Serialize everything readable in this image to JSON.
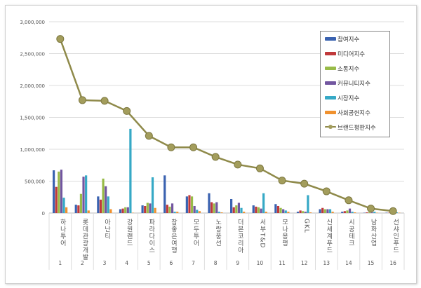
{
  "chart_data": {
    "type": "bar",
    "categories": [
      "하나투어",
      "롯데관광개발",
      "아난티",
      "강원랜드",
      "파라다이스",
      "참좋은여행",
      "모두투어",
      "노랑풍선",
      "더본코리아",
      "서부T&D",
      "모나용평",
      "GKL",
      "신세계푸드",
      "시공테크",
      "남화산업",
      "선샤인푸드"
    ],
    "category_numbers": [
      "1",
      "2",
      "3",
      "4",
      "5",
      "6",
      "7",
      "8",
      "9",
      "10",
      "11",
      "12",
      "13",
      "14",
      "15",
      "16"
    ],
    "ylim": [
      0,
      3000000
    ],
    "yticks": [
      "0",
      "500,000",
      "1,000,000",
      "1,500,000",
      "2,000,000",
      "2,500,000",
      "3,000,000"
    ],
    "grid": true,
    "legend_position": "top-right",
    "series": [
      {
        "name": "참여지수",
        "type": "bar",
        "color": "#3a62b0",
        "values": [
          670000,
          130000,
          260000,
          60000,
          120000,
          590000,
          260000,
          310000,
          220000,
          120000,
          140000,
          20000,
          60000,
          20000,
          5000,
          5000
        ]
      },
      {
        "name": "미디어지수",
        "type": "bar",
        "color": "#c0393b",
        "values": [
          410000,
          120000,
          210000,
          70000,
          110000,
          130000,
          280000,
          170000,
          90000,
          100000,
          110000,
          40000,
          80000,
          30000,
          10000,
          5000
        ]
      },
      {
        "name": "소통지수",
        "type": "bar",
        "color": "#98bb48",
        "values": [
          650000,
          300000,
          540000,
          90000,
          160000,
          100000,
          260000,
          150000,
          120000,
          90000,
          80000,
          30000,
          60000,
          40000,
          10000,
          5000
        ]
      },
      {
        "name": "커뮤니티지수",
        "type": "bar",
        "color": "#7256a0",
        "values": [
          680000,
          570000,
          420000,
          90000,
          150000,
          150000,
          110000,
          170000,
          160000,
          70000,
          60000,
          20000,
          60000,
          70000,
          10000,
          5000
        ]
      },
      {
        "name": "시장지수",
        "type": "bar",
        "color": "#36a9c6",
        "values": [
          240000,
          590000,
          260000,
          1320000,
          560000,
          20000,
          50000,
          20000,
          80000,
          310000,
          40000,
          280000,
          60000,
          20000,
          20000,
          10000
        ]
      },
      {
        "name": "사회공헌지수",
        "type": "bar",
        "color": "#f0912e",
        "values": [
          90000,
          40000,
          60000,
          5000,
          80000,
          20000,
          30000,
          10000,
          20000,
          20000,
          20000,
          10000,
          20000,
          10000,
          5000,
          5000
        ]
      },
      {
        "name": "브랜드평판지수",
        "type": "line",
        "color": "#8f8a4a",
        "values": [
          2730000,
          1770000,
          1760000,
          1600000,
          1210000,
          1030000,
          1030000,
          880000,
          760000,
          700000,
          510000,
          460000,
          340000,
          200000,
          70000,
          30000
        ]
      }
    ]
  }
}
